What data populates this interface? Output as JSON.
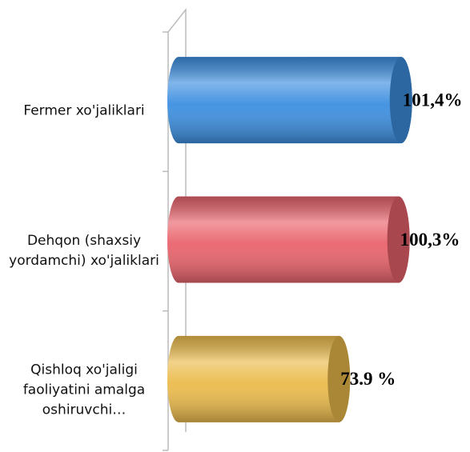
{
  "chart_data": {
    "type": "bar",
    "orientation": "horizontal",
    "categories": [
      "Fermer xo'jaliklari",
      "Dehqon (shaxsiy yordamchi) xo'jaliklari",
      "Qishloq xo'jaligi faoliyatini amalga oshiruvchi…"
    ],
    "values": [
      101.4,
      100.3,
      73.9
    ],
    "value_labels": [
      "101,4%",
      "100,3%",
      "73.9 %"
    ],
    "colors": [
      "#3d8fe0",
      "#e9636c",
      "#ebbb4c"
    ],
    "xlim": [
      0,
      110
    ]
  }
}
